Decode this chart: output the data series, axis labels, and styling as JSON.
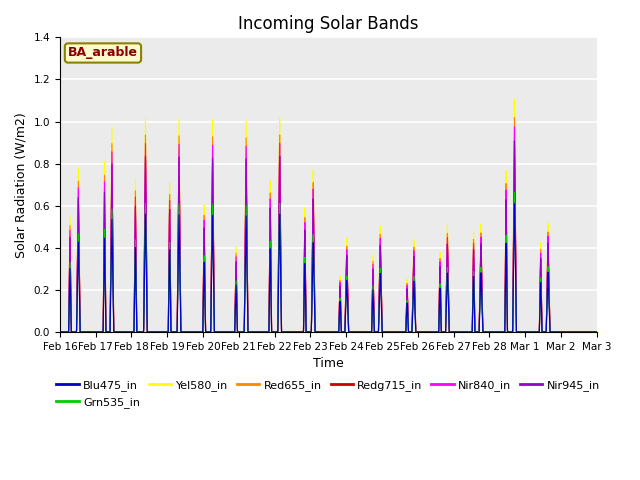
{
  "title": "Incoming Solar Bands",
  "xlabel": "Time",
  "ylabel": "Solar Radiation (W/m2)",
  "annotation": "BA_arable",
  "annotation_color": "#8B0000",
  "annotation_bg": "#FFFACD",
  "annotation_border": "#8B8000",
  "ylim": [
    0,
    1.4
  ],
  "series_order": [
    "Blu475_in",
    "Grn535_in",
    "Yel580_in",
    "Red655_in",
    "Redg715_in",
    "Nir840_in",
    "Nir945_in"
  ],
  "series": {
    "Blu475_in": {
      "color": "#0000CC",
      "lw": 0.8,
      "scale": 0.55
    },
    "Grn535_in": {
      "color": "#00CC00",
      "lw": 0.8,
      "scale": 0.6
    },
    "Yel580_in": {
      "color": "#FFFF00",
      "lw": 0.8,
      "scale": 1.0
    },
    "Red655_in": {
      "color": "#FF8800",
      "lw": 0.8,
      "scale": 0.92
    },
    "Redg715_in": {
      "color": "#CC0000",
      "lw": 0.8,
      "scale": 0.82
    },
    "Nir840_in": {
      "color": "#FF00FF",
      "lw": 0.8,
      "scale": 0.88
    },
    "Nir945_in": {
      "color": "#9900CC",
      "lw": 0.8,
      "scale": 0.82
    }
  },
  "date_labels": [
    "Feb 16",
    "Feb 17",
    "Feb 18",
    "Feb 19",
    "Feb 20",
    "Feb 21",
    "Feb 22",
    "Feb 23",
    "Feb 24",
    "Feb 25",
    "Feb 26",
    "Feb 27",
    "Feb 28",
    "Mar 1",
    "Mar 2",
    "Mar 3"
  ],
  "plot_bg": "#EBEBEB",
  "grid_color": "#FFFFFF",
  "title_fontsize": 12,
  "label_fontsize": 9,
  "tick_fontsize": 7.5,
  "legend_fontsize": 8,
  "day_peaks_main": [
    0.78,
    0.98,
    1.03,
    1.03,
    1.03,
    1.03,
    1.05,
    0.8,
    0.46,
    0.52,
    0.45,
    0.52,
    0.52,
    1.12,
    0.52,
    0.0
  ],
  "day_peaks_secondary": [
    0.55,
    0.82,
    0.74,
    0.74,
    0.62,
    0.42,
    0.75,
    0.62,
    0.28,
    0.38,
    0.26,
    0.4,
    0.5,
    0.78,
    0.44,
    0.0
  ],
  "day_peak2_offset": [
    -0.25,
    -0.22,
    -0.3,
    -0.28,
    -0.25,
    -0.3,
    -0.28,
    -0.25,
    -0.2,
    -0.22,
    -0.2,
    -0.22,
    -0.22,
    -0.25,
    -0.22,
    0.0
  ]
}
